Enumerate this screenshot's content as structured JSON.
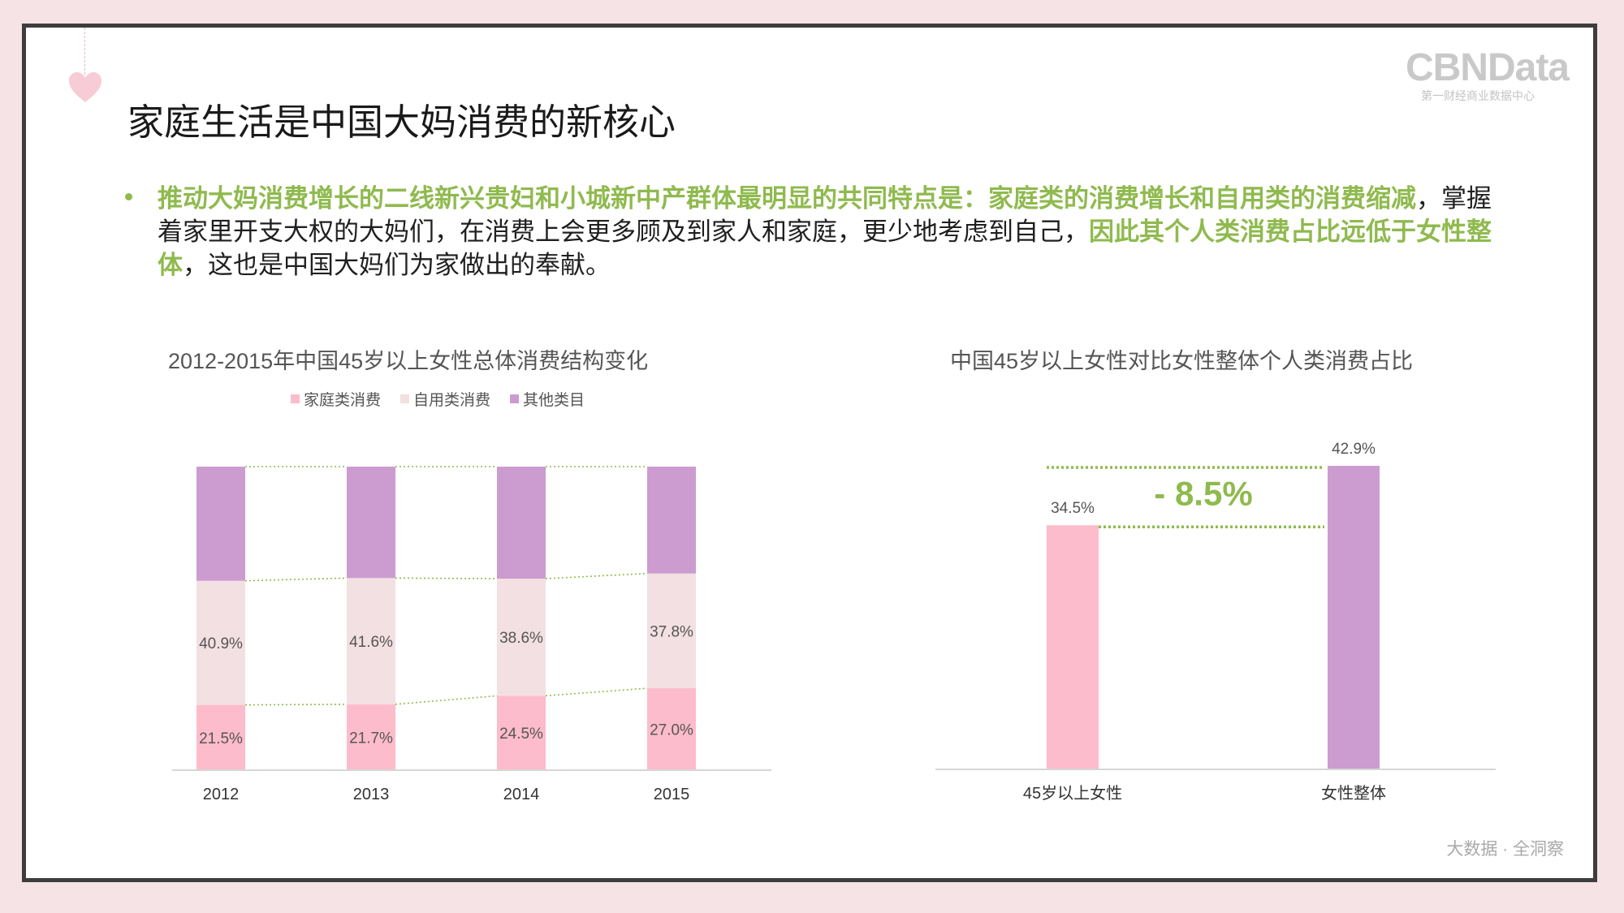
{
  "page_title": "家庭生活是中国大妈消费的新核心",
  "logo": {
    "main": "CBNData",
    "sub": "第一财经商业数据中心"
  },
  "paragraph": {
    "seg1": "推动大妈消费增长的二线新兴贵妇和小城新中产群体最明显的共同特点是：家庭类的消费增长和自用类的消费缩减",
    "seg2": "，掌握着家里开支大权的大妈们，在消费上会更多顾及到家人和家庭，更少地考虑到自己，",
    "seg3": "因此其个人类消费占比远低于女性整体",
    "seg4": "，这也是中国大妈们为家做出的奉献。"
  },
  "footer": "大数据 · 全洞察",
  "colors": {
    "family": "#fdbccb",
    "self": "#f3e0e2",
    "other": "#cc9bd0",
    "accent": "#8fba4e"
  },
  "chart_data": [
    {
      "type": "bar",
      "stacked": true,
      "title": "2012-2015年中国45岁以上女性总体消费结构变化",
      "categories": [
        "2012",
        "2013",
        "2014",
        "2015"
      ],
      "series": [
        {
          "name": "家庭类消费",
          "values": [
            21.5,
            21.7,
            24.5,
            27.0
          ],
          "labels": [
            "21.5%",
            "21.7%",
            "24.5%",
            "27.0%"
          ]
        },
        {
          "name": "自用类消费",
          "values": [
            40.9,
            41.6,
            38.6,
            37.8
          ],
          "labels": [
            "40.9%",
            "41.6%",
            "38.6%",
            "37.8%"
          ]
        },
        {
          "name": "其他类目",
          "values": [
            37.6,
            36.7,
            36.9,
            35.2
          ]
        }
      ],
      "ylim": [
        0,
        100
      ],
      "legend": "top",
      "grid": false
    },
    {
      "type": "bar",
      "title": "中国45岁以上女性对比女性整体个人类消费占比",
      "categories": [
        "45岁以上女性",
        "女性整体"
      ],
      "values": [
        34.5,
        42.9
      ],
      "labels": [
        "34.5%",
        "42.9%"
      ],
      "ylim": [
        0,
        42.9
      ],
      "annotation": "- 8.5%",
      "grid": false
    }
  ]
}
